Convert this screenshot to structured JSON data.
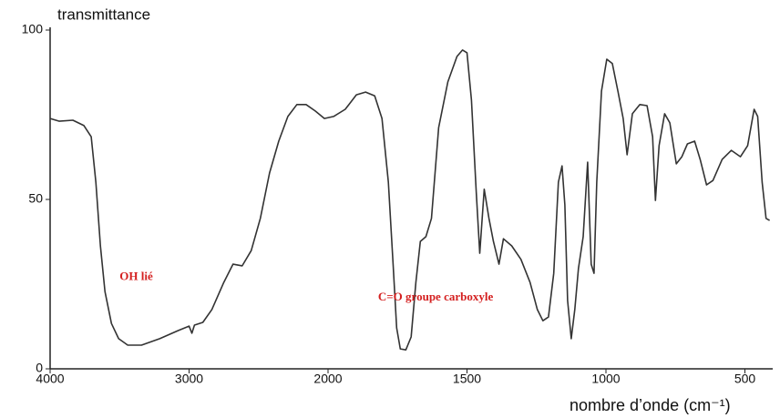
{
  "chart_data": {
    "type": "line",
    "title": "transmittance",
    "x_label": "nombre d’onde (cm⁻¹)",
    "annotations": [
      {
        "text": "OH lié",
        "x": 3500,
        "y": 27
      },
      {
        "text": "C=O groupe carboxyle",
        "x": 1820,
        "y": 21
      }
    ],
    "xlim": [
      4000,
      400
    ],
    "xticks": [
      4000,
      3000,
      2000,
      1500,
      1000,
      500
    ],
    "ylim": [
      0,
      100
    ],
    "yticks": [
      0,
      50,
      100
    ],
    "grid": false,
    "series": [
      {
        "name": "transmittance",
        "color": "#333333",
        "x": [
          4000,
          3934,
          3836,
          3757,
          3704,
          3671,
          3638,
          3605,
          3559,
          3507,
          3441,
          3342,
          3211,
          3079,
          3000,
          2980,
          2961,
          2901,
          2836,
          2750,
          2684,
          2618,
          2553,
          2487,
          2421,
          2355,
          2289,
          2224,
          2158,
          2092,
          2026,
          1980,
          1938,
          1898,
          1865,
          1832,
          1806,
          1783,
          1766,
          1753,
          1740,
          1720,
          1701,
          1684,
          1668,
          1648,
          1628,
          1602,
          1569,
          1536,
          1516,
          1500,
          1484,
          1467,
          1454,
          1438,
          1421,
          1405,
          1385,
          1369,
          1339,
          1306,
          1273,
          1247,
          1227,
          1207,
          1188,
          1171,
          1158,
          1148,
          1138,
          1125,
          1112,
          1099,
          1082,
          1066,
          1053,
          1043,
          1033,
          1016,
          997,
          977,
          957,
          938,
          924,
          905,
          878,
          852,
          832,
          822,
          809,
          789,
          770,
          747,
          727,
          707,
          681,
          661,
          638,
          615,
          582,
          549,
          516,
          490,
          467,
          454,
          438,
          424,
          411
        ],
        "values": [
          73.9,
          73.1,
          73.4,
          71.8,
          68.5,
          55.1,
          36.3,
          22.8,
          13.4,
          8.9,
          7.0,
          7.0,
          8.9,
          11.3,
          12.6,
          10.5,
          12.9,
          13.7,
          17.5,
          25.5,
          30.9,
          30.4,
          34.9,
          44.4,
          57.8,
          67.2,
          74.5,
          78.0,
          78.0,
          76.1,
          73.9,
          74.5,
          76.6,
          80.9,
          81.7,
          80.6,
          73.9,
          55.1,
          30.9,
          12.1,
          5.9,
          5.6,
          9.4,
          25.5,
          37.6,
          39.0,
          44.4,
          71.2,
          84.7,
          92.2,
          94.1,
          93.3,
          79.3,
          52.4,
          34.1,
          53.0,
          44.4,
          37.6,
          30.9,
          38.4,
          36.3,
          32.3,
          25.5,
          17.5,
          14.2,
          15.3,
          28.2,
          55.1,
          59.9,
          48.4,
          20.2,
          8.9,
          17.5,
          29.6,
          39.0,
          61.0,
          30.9,
          28.2,
          55.1,
          82.0,
          91.4,
          90.1,
          82.0,
          73.9,
          63.2,
          75.3,
          78.0,
          77.7,
          68.5,
          49.7,
          65.9,
          75.3,
          72.6,
          60.5,
          62.6,
          66.4,
          67.2,
          61.8,
          54.3,
          55.6,
          61.8,
          64.5,
          62.6,
          65.9,
          76.6,
          74.5,
          55.1,
          44.4,
          43.8
        ]
      }
    ]
  }
}
